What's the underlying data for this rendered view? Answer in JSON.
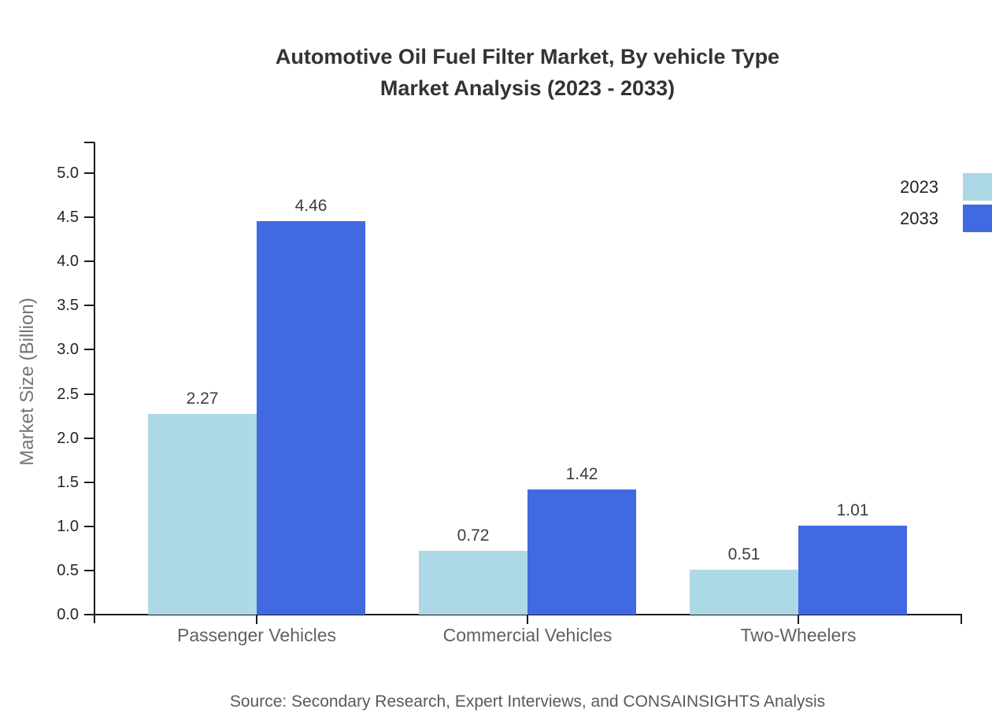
{
  "title": {
    "line1": "Automotive Oil Fuel Filter Market, By vehicle Type",
    "line2": "Market Analysis (2023 - 2033)"
  },
  "y_axis": {
    "label": "Market Size (Billion)"
  },
  "legend": [
    {
      "label": "2023",
      "color": "#ADD8E6"
    },
    {
      "label": "2033",
      "color": "#4169E1"
    }
  ],
  "source": "Source: Secondary Research, Expert Interviews, and CONSAINSIGHTS Analysis",
  "chart_data": {
    "type": "bar",
    "title": "Automotive Oil Fuel Filter Market, By vehicle Type Market Analysis (2023 - 2033)",
    "categories": [
      "Passenger Vehicles",
      "Commercial Vehicles",
      "Two-Wheelers"
    ],
    "series": [
      {
        "name": "2023",
        "color": "#ADD8E6",
        "values": [
          2.27,
          0.72,
          0.51
        ]
      },
      {
        "name": "2033",
        "color": "#4169E1",
        "values": [
          4.46,
          1.42,
          1.01
        ]
      }
    ],
    "xlabel": "",
    "ylabel": "Market Size (Billion)",
    "ylim": [
      0.0,
      5.0
    ],
    "ytick_step": 0.5,
    "grid": false,
    "legend_position": "top-right",
    "data_labels": true,
    "source": "Source: Secondary Research, Expert Interviews, and CONSAINSIGHTS Analysis"
  }
}
